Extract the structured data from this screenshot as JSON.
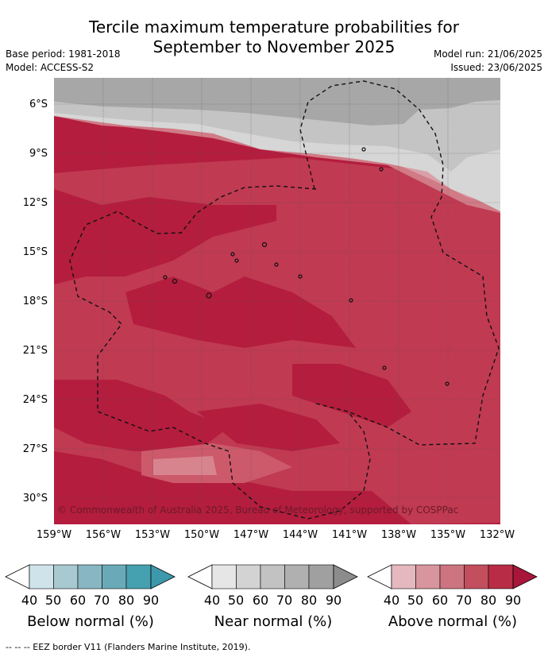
{
  "title_line1": "Tercile maximum temperature probabilities for",
  "title_line2": "September to November 2025",
  "base_period": "Base period: 1981-2018",
  "model": "Model: ACCESS-S2",
  "model_run": "Model run: 21/06/2025",
  "issued": "Issued: 23/06/2025",
  "copyright": "© Commonwealth of Australia 2025, Bureau of Meteorology, supported by COSPPac",
  "lat_labels": [
    "6°S",
    "9°S",
    "12°S",
    "15°S",
    "18°S",
    "21°S",
    "24°S",
    "27°S",
    "30°S"
  ],
  "lon_labels": [
    "159°W",
    "156°W",
    "153°W",
    "150°W",
    "147°W",
    "144°W",
    "141°W",
    "138°W",
    "135°W",
    "132°W"
  ],
  "legend": {
    "below": {
      "title": "Below normal (%)",
      "colors": [
        "#cfe3ea",
        "#a9c9d1",
        "#88b7c3",
        "#6aaab8",
        "#45a0b0"
      ]
    },
    "near": {
      "title": "Near normal (%)",
      "colors": [
        "#e6e6e6",
        "#d3d3d3",
        "#c2c2c2",
        "#b0b0b0",
        "#a0a0a0"
      ]
    },
    "above": {
      "title": "Above normal (%)",
      "colors": [
        "#e4b8be",
        "#d8959d",
        "#cc7480",
        "#c24e5e",
        "#b82c45"
      ]
    },
    "ticks": [
      "40",
      "50",
      "60",
      "70",
      "80",
      "90"
    ]
  },
  "footer": "-- -- -- EEZ border V11 (Flanders Marine Institute, 2019)."
}
